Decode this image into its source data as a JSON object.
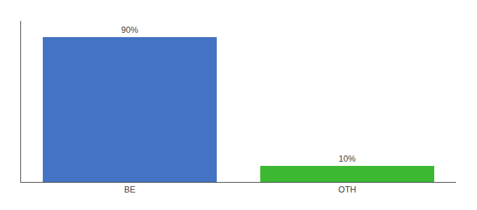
{
  "chart_data": {
    "type": "bar",
    "categories": [
      "BE",
      "OTH"
    ],
    "values": [
      90,
      10
    ],
    "value_labels": [
      "90%",
      "10%"
    ],
    "data_labels": true,
    "colors": [
      "#4472c4",
      "#3cb832"
    ],
    "ylim": [
      0,
      100
    ],
    "tick_labels": "x",
    "grid": false
  }
}
